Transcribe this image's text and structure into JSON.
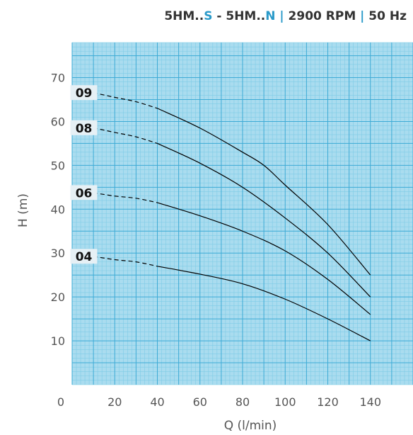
{
  "chart_data": {
    "type": "line",
    "title": {
      "model_prefix_1": "5HM..",
      "model_suffix_1": "S",
      "model_sep": " - ",
      "model_prefix_2": "5HM..",
      "model_suffix_2": "N",
      "divider_1": " | ",
      "rpm": "2900 RPM",
      "divider_2": " | ",
      "freq": "50 Hz"
    },
    "xlabel": "Q (l/min)",
    "ylabel": "H (m)",
    "xlim": [
      0,
      160
    ],
    "ylim": [
      0,
      78
    ],
    "xticks": [
      0,
      20,
      40,
      60,
      80,
      100,
      120,
      140
    ],
    "xtick_labels": [
      "0",
      "20",
      "40",
      "60",
      "80",
      "100",
      "120",
      "140"
    ],
    "yticks": [
      10,
      20,
      30,
      40,
      50,
      60,
      70
    ],
    "ytick_labels": [
      "10",
      "20",
      "30",
      "40",
      "50",
      "60",
      "70"
    ],
    "grid": true,
    "series": [
      {
        "name": "09",
        "dashed_x": [
          0,
          40
        ],
        "x": [
          0,
          10,
          20,
          30,
          40,
          60,
          80,
          90,
          100,
          120,
          140
        ],
        "y": [
          67,
          66.5,
          65.5,
          64.5,
          63,
          58.5,
          53,
          50,
          45.5,
          36.5,
          25
        ]
      },
      {
        "name": "08",
        "dashed_x": [
          0,
          40
        ],
        "x": [
          0,
          10,
          20,
          30,
          40,
          60,
          80,
          100,
          120,
          140
        ],
        "y": [
          59,
          58.5,
          57.5,
          56.5,
          55,
          50.5,
          45,
          38,
          30,
          20
        ]
      },
      {
        "name": "06",
        "dashed_x": [
          0,
          40
        ],
        "x": [
          0,
          10,
          20,
          30,
          40,
          60,
          80,
          100,
          120,
          140
        ],
        "y": [
          44,
          43.7,
          43,
          42.5,
          41.5,
          38.5,
          35,
          30.5,
          24,
          16
        ]
      },
      {
        "name": "04",
        "dashed_x": [
          0,
          40
        ],
        "x": [
          0,
          10,
          20,
          30,
          40,
          60,
          80,
          100,
          120,
          140
        ],
        "y": [
          29.5,
          29.2,
          28.5,
          28,
          27,
          25.2,
          23,
          19.5,
          15,
          10
        ]
      }
    ],
    "colors": {
      "grid_bg": "#aadcef",
      "grid_minor": "#7fcbe6",
      "grid_major": "#3eabd6",
      "curve": "#000000",
      "title_accent": "#2a9ac9",
      "title_text": "#333333",
      "label_bg": "#e6f0f5"
    }
  }
}
